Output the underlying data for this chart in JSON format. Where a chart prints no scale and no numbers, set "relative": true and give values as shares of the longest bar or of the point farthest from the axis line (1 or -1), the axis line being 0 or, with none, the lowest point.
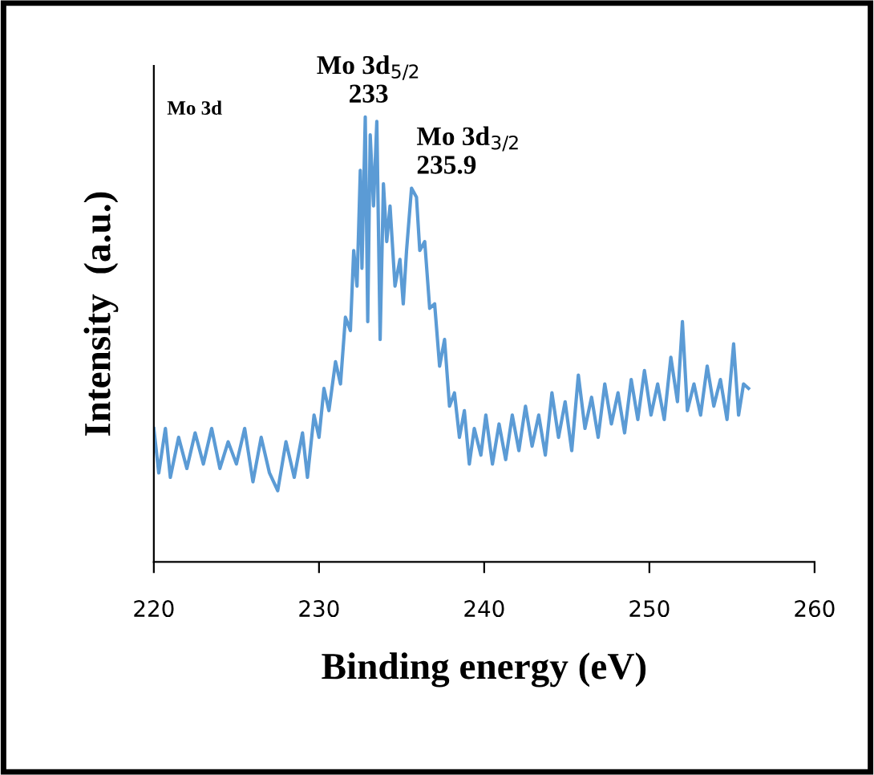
{
  "chart_data": {
    "type": "line",
    "relative": true,
    "xlabel": "Binding energy (eV)",
    "ylabel": "Intensity  (a.u.)",
    "xlim": [
      220,
      260
    ],
    "xticks": [
      220,
      230,
      240,
      250,
      260
    ],
    "grid": false,
    "legend": false,
    "marker": "none",
    "line_style": "solid",
    "annotations": [
      "Mo 3d",
      {
        "text": "Mo 3d$_{5/2}$\n233",
        "x": 233,
        "y": 1.0
      },
      {
        "text": "Mo 3d$_{3/2}$\n235.9",
        "x": 235.9,
        "y": 0.84
      }
    ],
    "series": [
      {
        "color": "#5b9bd5",
        "x": [
          220.0,
          220.3,
          220.7,
          221.0,
          221.5,
          222.0,
          222.5,
          223.0,
          223.5,
          224.0,
          224.5,
          225.0,
          225.5,
          226.0,
          226.5,
          227.0,
          227.5,
          228.0,
          228.5,
          229.0,
          229.3,
          229.7,
          230.0,
          230.3,
          230.6,
          231.0,
          231.3,
          231.6,
          231.9,
          232.1,
          232.3,
          232.5,
          232.6,
          232.8,
          232.95,
          233.1,
          233.3,
          233.5,
          233.7,
          233.9,
          234.1,
          234.3,
          234.6,
          234.9,
          235.1,
          235.3,
          235.6,
          235.9,
          236.1,
          236.4,
          236.7,
          237.0,
          237.3,
          237.6,
          237.9,
          238.2,
          238.5,
          238.8,
          239.1,
          239.4,
          239.8,
          240.1,
          240.5,
          240.9,
          241.3,
          241.7,
          242.1,
          242.5,
          242.9,
          243.3,
          243.7,
          244.1,
          244.5,
          244.9,
          245.3,
          245.7,
          246.1,
          246.5,
          246.9,
          247.3,
          247.7,
          248.1,
          248.5,
          248.9,
          249.3,
          249.7,
          250.1,
          250.5,
          250.9,
          251.3,
          251.7,
          252.0,
          252.3,
          252.7,
          253.1,
          253.5,
          253.9,
          254.3,
          254.7,
          255.1,
          255.4,
          255.7,
          256.0
        ],
        "values": [
          0.3,
          0.2,
          0.3,
          0.19,
          0.28,
          0.21,
          0.29,
          0.22,
          0.3,
          0.21,
          0.27,
          0.22,
          0.3,
          0.18,
          0.28,
          0.2,
          0.16,
          0.27,
          0.19,
          0.29,
          0.19,
          0.33,
          0.28,
          0.39,
          0.34,
          0.45,
          0.4,
          0.55,
          0.52,
          0.7,
          0.62,
          0.88,
          0.66,
          1.0,
          0.54,
          0.96,
          0.8,
          0.99,
          0.5,
          0.85,
          0.72,
          0.8,
          0.62,
          0.68,
          0.58,
          0.7,
          0.84,
          0.82,
          0.7,
          0.72,
          0.57,
          0.58,
          0.44,
          0.5,
          0.35,
          0.38,
          0.28,
          0.34,
          0.22,
          0.3,
          0.24,
          0.33,
          0.22,
          0.31,
          0.23,
          0.33,
          0.25,
          0.35,
          0.26,
          0.33,
          0.24,
          0.38,
          0.28,
          0.36,
          0.25,
          0.42,
          0.3,
          0.37,
          0.28,
          0.4,
          0.31,
          0.38,
          0.29,
          0.41,
          0.32,
          0.43,
          0.33,
          0.4,
          0.32,
          0.46,
          0.36,
          0.54,
          0.34,
          0.4,
          0.33,
          0.44,
          0.35,
          0.41,
          0.32,
          0.49,
          0.33,
          0.4,
          0.39
        ]
      }
    ]
  }
}
